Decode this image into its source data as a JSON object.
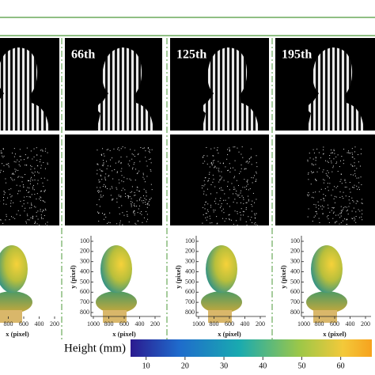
{
  "frames": [
    {
      "label": "66th"
    },
    {
      "label": "125th"
    },
    {
      "label": "195th"
    }
  ],
  "plots": [
    {
      "xticks": [
        800,
        600,
        400,
        200
      ],
      "xlabel": "x (pixel)"
    },
    {
      "yticks": [
        100,
        200,
        300,
        400,
        500,
        600,
        700,
        800
      ],
      "ylabel": "y (pixel)",
      "xticks": [
        1000,
        800,
        600,
        400,
        200
      ],
      "xlabel": "x (pixel)"
    },
    {
      "yticks": [
        100,
        200,
        300,
        400,
        500,
        600,
        700,
        800
      ],
      "ylabel": "y (pixel)",
      "xticks": [
        1000,
        800,
        600,
        400,
        200
      ],
      "xlabel": "x (pixel)"
    },
    {
      "yticks": [
        100,
        200,
        300,
        400,
        500,
        600,
        700,
        800
      ],
      "ylabel": "y (pixel)",
      "xticks": [
        1000,
        800,
        600,
        400,
        200
      ],
      "xlabel": "x (pixel)"
    }
  ],
  "colorbar": {
    "title": "Height (mm)",
    "lim": [
      6,
      68
    ],
    "ticks": [
      10,
      20,
      30,
      40,
      50,
      60
    ]
  }
}
